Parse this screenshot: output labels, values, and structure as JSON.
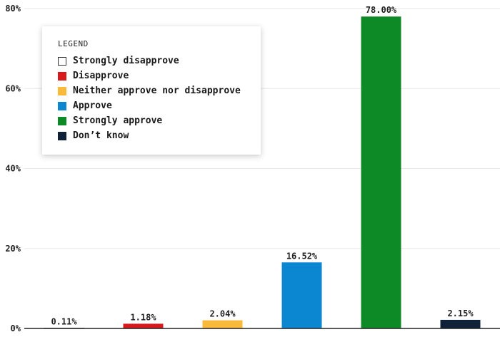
{
  "chart_data": {
    "type": "bar",
    "categories": [
      "Strongly disapprove",
      "Disapprove",
      "Neither approve nor disapprove",
      "Approve",
      "Strongly approve",
      "Don’t know"
    ],
    "values": [
      0.11,
      1.18,
      2.04,
      16.52,
      78.0,
      2.15
    ],
    "value_labels": [
      "0.11%",
      "1.18%",
      "2.04%",
      "16.52%",
      "78.00%",
      "2.15%"
    ],
    "colors": [
      "#ffffff",
      "#d7191c",
      "#f9b93b",
      "#0a87d0",
      "#0d8a25",
      "#0f2239"
    ],
    "ylim": [
      0,
      80
    ],
    "yticks": [
      0,
      20,
      40,
      60,
      80
    ],
    "ytick_labels": [
      "0%",
      "20%",
      "40%",
      "60%",
      "80%"
    ],
    "grid": true,
    "legend": {
      "title": "LEGEND",
      "placement": "top-left"
    }
  }
}
